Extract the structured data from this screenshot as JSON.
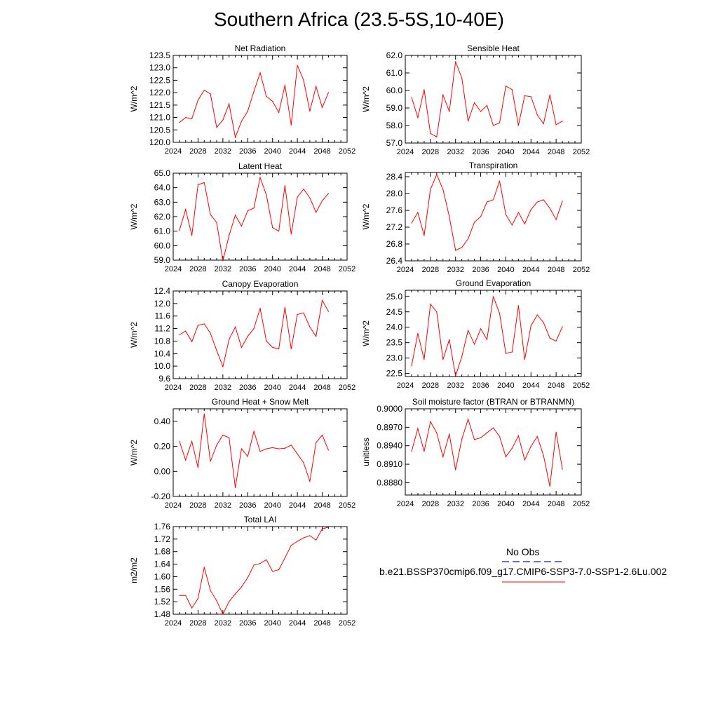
{
  "title": "Southern Africa (23.5-5S,10-40E)",
  "legend": {
    "obs_label": "No Obs",
    "obs_color": "#1a1aa6",
    "case_label": "b.e21.BSSP370cmip6.f09_g17.CMIP6-SSP3-7.0-SSP1-2.6Lu.002",
    "case_color": "#ff0000"
  },
  "chart_data": [
    {
      "type": "line",
      "title": "Net Radiation",
      "ylabel": "W/m^2",
      "xlim": [
        2024,
        2052
      ],
      "xticks": [
        2024,
        2028,
        2032,
        2036,
        2040,
        2044,
        2048,
        2052
      ],
      "ylim": [
        120.0,
        123.5
      ],
      "yticks": [
        "120.0",
        "120.5",
        "121.0",
        "121.5",
        "122.0",
        "122.5",
        "123.0",
        "123.5"
      ],
      "x": [
        2025,
        2026,
        2027,
        2028,
        2029,
        2030,
        2031,
        2032,
        2033,
        2034,
        2035,
        2036,
        2037,
        2038,
        2039,
        2040,
        2041,
        2042,
        2043,
        2044,
        2045,
        2046,
        2047,
        2048,
        2049
      ],
      "series": [
        {
          "values": [
            120.8,
            121.0,
            120.95,
            121.7,
            122.1,
            121.95,
            120.6,
            120.9,
            121.55,
            120.2,
            120.85,
            121.25,
            122.05,
            122.8,
            121.85,
            121.65,
            121.2,
            122.3,
            120.7,
            123.1,
            122.5,
            121.25,
            122.25,
            121.4,
            122.0
          ]
        }
      ]
    },
    {
      "type": "line",
      "title": "Sensible Heat",
      "ylabel": "W/m^2",
      "xlim": [
        2024,
        2052
      ],
      "xticks": [
        2024,
        2028,
        2032,
        2036,
        2040,
        2044,
        2048,
        2052
      ],
      "ylim": [
        57.0,
        62.0
      ],
      "yticks": [
        "57.0",
        "58.0",
        "59.0",
        "60.0",
        "61.0",
        "62.0"
      ],
      "x": [
        2025,
        2026,
        2027,
        2028,
        2029,
        2030,
        2031,
        2032,
        2033,
        2034,
        2035,
        2036,
        2037,
        2038,
        2039,
        2040,
        2041,
        2042,
        2043,
        2044,
        2045,
        2046,
        2047,
        2048,
        2049
      ],
      "series": [
        {
          "values": [
            59.6,
            58.45,
            60.05,
            57.55,
            57.35,
            59.75,
            58.8,
            61.65,
            60.7,
            58.25,
            59.3,
            58.8,
            59.15,
            58.0,
            58.15,
            60.25,
            60.05,
            58.0,
            59.7,
            59.65,
            58.6,
            58.1,
            59.75,
            58.05,
            58.25
          ]
        }
      ]
    },
    {
      "type": "line",
      "title": "Latent Heat",
      "ylabel": "W/m^2",
      "xlim": [
        2024,
        2052
      ],
      "xticks": [
        2024,
        2028,
        2032,
        2036,
        2040,
        2044,
        2048,
        2052
      ],
      "ylim": [
        59.0,
        65.0
      ],
      "yticks": [
        "59.0",
        "60.0",
        "61.0",
        "62.0",
        "63.0",
        "64.0",
        "65.0"
      ],
      "x": [
        2025,
        2026,
        2027,
        2028,
        2029,
        2030,
        2031,
        2032,
        2033,
        2034,
        2035,
        2036,
        2037,
        2038,
        2039,
        2040,
        2041,
        2042,
        2043,
        2044,
        2045,
        2046,
        2047,
        2048,
        2049
      ],
      "series": [
        {
          "values": [
            61.05,
            62.5,
            60.7,
            64.2,
            64.35,
            62.15,
            61.6,
            58.95,
            60.7,
            62.1,
            61.35,
            62.4,
            62.6,
            64.7,
            63.5,
            61.25,
            61.0,
            64.15,
            60.8,
            63.35,
            63.9,
            63.3,
            62.3,
            63.1,
            63.6
          ]
        }
      ]
    },
    {
      "type": "line",
      "title": "Transpiration",
      "ylabel": "W/m^2",
      "xlim": [
        2024,
        2052
      ],
      "xticks": [
        2024,
        2028,
        2032,
        2036,
        2040,
        2044,
        2048,
        2052
      ],
      "ylim": [
        26.4,
        28.5
      ],
      "yticks": [
        "26.4",
        "26.8",
        "27.2",
        "27.6",
        "28.0",
        "28.4"
      ],
      "x": [
        2025,
        2026,
        2027,
        2028,
        2029,
        2030,
        2031,
        2032,
        2033,
        2034,
        2035,
        2036,
        2037,
        2038,
        2039,
        2040,
        2041,
        2042,
        2043,
        2044,
        2045,
        2046,
        2047,
        2048,
        2049
      ],
      "series": [
        {
          "values": [
            27.3,
            27.55,
            27.0,
            28.1,
            28.45,
            28.1,
            27.45,
            26.65,
            26.72,
            26.92,
            27.32,
            27.45,
            27.8,
            27.85,
            28.3,
            27.5,
            27.25,
            27.55,
            27.28,
            27.62,
            27.8,
            27.85,
            27.65,
            27.38,
            27.82
          ]
        }
      ]
    },
    {
      "type": "line",
      "title": "Canopy Evaporation",
      "ylabel": "W/m^2",
      "xlim": [
        2024,
        2052
      ],
      "xticks": [
        2024,
        2028,
        2032,
        2036,
        2040,
        2044,
        2048,
        2052
      ],
      "ylim": [
        9.6,
        12.4
      ],
      "yticks": [
        "9.6",
        "10.0",
        "10.4",
        "10.8",
        "11.2",
        "11.6",
        "12.0",
        "12.4"
      ],
      "x": [
        2025,
        2026,
        2027,
        2028,
        2029,
        2030,
        2031,
        2032,
        2033,
        2034,
        2035,
        2036,
        2037,
        2038,
        2039,
        2040,
        2041,
        2042,
        2043,
        2044,
        2045,
        2046,
        2047,
        2048,
        2049
      ],
      "series": [
        {
          "values": [
            11.0,
            11.12,
            10.78,
            11.3,
            11.35,
            11.05,
            10.5,
            9.98,
            10.85,
            11.25,
            10.6,
            10.95,
            11.2,
            11.85,
            10.8,
            10.6,
            10.55,
            11.88,
            10.55,
            11.65,
            11.7,
            11.25,
            10.95,
            12.1,
            11.75
          ]
        }
      ]
    },
    {
      "type": "line",
      "title": "Ground Evaporation",
      "ylabel": "W/m^2",
      "xlim": [
        2024,
        2052
      ],
      "xticks": [
        2024,
        2028,
        2032,
        2036,
        2040,
        2044,
        2048,
        2052
      ],
      "ylim": [
        22.4,
        25.2
      ],
      "yticks": [
        "22.5",
        "23.0",
        "23.5",
        "24.0",
        "24.5",
        "25.0"
      ],
      "x": [
        2025,
        2026,
        2027,
        2028,
        2029,
        2030,
        2031,
        2032,
        2033,
        2034,
        2035,
        2036,
        2037,
        2038,
        2039,
        2040,
        2041,
        2042,
        2043,
        2044,
        2045,
        2046,
        2047,
        2048,
        2049
      ],
      "series": [
        {
          "values": [
            22.75,
            23.8,
            22.95,
            24.75,
            24.5,
            22.95,
            23.6,
            22.42,
            23.05,
            23.9,
            23.45,
            23.95,
            23.6,
            25.0,
            24.45,
            23.15,
            23.2,
            24.7,
            22.95,
            24.05,
            24.4,
            24.15,
            23.65,
            23.55,
            24.02
          ]
        }
      ]
    },
    {
      "type": "line",
      "title": "Ground Heat + Snow Melt",
      "ylabel": "W/m^2",
      "xlim": [
        2024,
        2052
      ],
      "xticks": [
        2024,
        2028,
        2032,
        2036,
        2040,
        2044,
        2048,
        2052
      ],
      "ylim": [
        -0.2,
        0.5
      ],
      "yticks": [
        "-0.20",
        "0.00",
        "0.20",
        "0.40"
      ],
      "x": [
        2025,
        2026,
        2027,
        2028,
        2029,
        2030,
        2031,
        2032,
        2033,
        2034,
        2035,
        2036,
        2037,
        2038,
        2039,
        2040,
        2041,
        2042,
        2043,
        2044,
        2045,
        2046,
        2047,
        2048,
        2049
      ],
      "series": [
        {
          "values": [
            0.24,
            0.09,
            0.24,
            0.03,
            0.46,
            0.08,
            0.21,
            0.29,
            0.27,
            -0.13,
            0.18,
            0.12,
            0.32,
            0.16,
            0.18,
            0.19,
            0.18,
            0.185,
            0.21,
            0.14,
            0.07,
            -0.08,
            0.23,
            0.29,
            0.17
          ]
        }
      ]
    },
    {
      "type": "line",
      "title": "Soil moisture factor (BTRAN or BTRANMN)",
      "ylabel": "unitless",
      "xlim": [
        2024,
        2052
      ],
      "xticks": [
        2024,
        2028,
        2032,
        2036,
        2040,
        2044,
        2048,
        2052
      ],
      "ylim": [
        0.886,
        0.9
      ],
      "yticks": [
        "0.8880",
        "0.8910",
        "0.8940",
        "0.8970",
        "0.9000"
      ],
      "x": [
        2025,
        2026,
        2027,
        2028,
        2029,
        2030,
        2031,
        2032,
        2033,
        2034,
        2035,
        2036,
        2037,
        2038,
        2039,
        2040,
        2041,
        2042,
        2043,
        2044,
        2045,
        2046,
        2047,
        2048,
        2049
      ],
      "series": [
        {
          "values": [
            0.8931,
            0.8968,
            0.8931,
            0.8979,
            0.8961,
            0.8922,
            0.8959,
            0.8901,
            0.8951,
            0.8983,
            0.895,
            0.8953,
            0.8961,
            0.8969,
            0.8955,
            0.8922,
            0.8936,
            0.8956,
            0.8917,
            0.8939,
            0.8955,
            0.8924,
            0.8874,
            0.8962,
            0.8902
          ]
        }
      ]
    },
    {
      "type": "line",
      "title": "Total LAI",
      "ylabel": "m2/m2",
      "xlim": [
        2024,
        2052
      ],
      "xticks": [
        2024,
        2028,
        2032,
        2036,
        2040,
        2044,
        2048,
        2052
      ],
      "ylim": [
        1.48,
        1.76
      ],
      "yticks": [
        "1.48",
        "1.52",
        "1.56",
        "1.60",
        "1.64",
        "1.68",
        "1.72",
        "1.76"
      ],
      "x": [
        2025,
        2026,
        2027,
        2028,
        2029,
        2030,
        2031,
        2032,
        2033,
        2034,
        2035,
        2036,
        2037,
        2038,
        2039,
        2040,
        2041,
        2042,
        2043,
        2044,
        2045,
        2046,
        2047,
        2048,
        2049
      ],
      "series": [
        {
          "values": [
            1.54,
            1.54,
            1.5,
            1.53,
            1.63,
            1.556,
            1.523,
            1.48,
            1.52,
            1.545,
            1.567,
            1.597,
            1.637,
            1.642,
            1.654,
            1.617,
            1.622,
            1.66,
            1.7,
            1.713,
            1.724,
            1.731,
            1.717,
            1.753,
            1.758
          ]
        }
      ]
    }
  ]
}
